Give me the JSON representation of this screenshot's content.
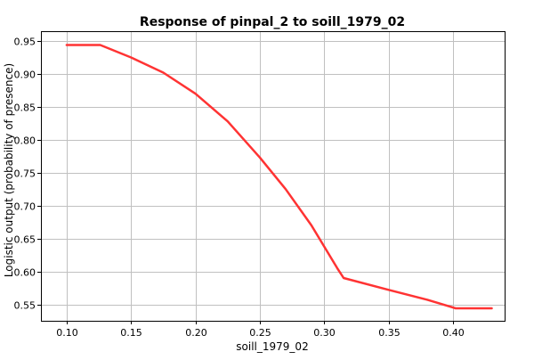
{
  "chart_data": {
    "type": "line",
    "title": "Response of pinpal_2 to soill_1979_02",
    "xlabel": "soill_1979_02",
    "ylabel": "Logistic output (probability of presence)",
    "xlim": [
      0.08,
      0.44
    ],
    "ylim": [
      0.525,
      0.965
    ],
    "x_ticks": [
      0.1,
      0.15,
      0.2,
      0.25,
      0.3,
      0.35,
      0.4
    ],
    "y_ticks": [
      0.55,
      0.6,
      0.65,
      0.7,
      0.75,
      0.8,
      0.85,
      0.9,
      0.95
    ],
    "grid": true,
    "series": [
      {
        "color": "#ff3333",
        "x": [
          0.1,
          0.126,
          0.15,
          0.175,
          0.2,
          0.225,
          0.25,
          0.27,
          0.29,
          0.31,
          0.315,
          0.35,
          0.38,
          0.402,
          0.43
        ],
        "y": [
          0.944,
          0.944,
          0.925,
          0.902,
          0.87,
          0.828,
          0.773,
          0.725,
          0.67,
          0.605,
          0.59,
          0.572,
          0.557,
          0.544,
          0.544
        ]
      }
    ],
    "colors": {
      "grid": "#c0c0c0",
      "axis": "#000000",
      "background": "#ffffff"
    }
  }
}
